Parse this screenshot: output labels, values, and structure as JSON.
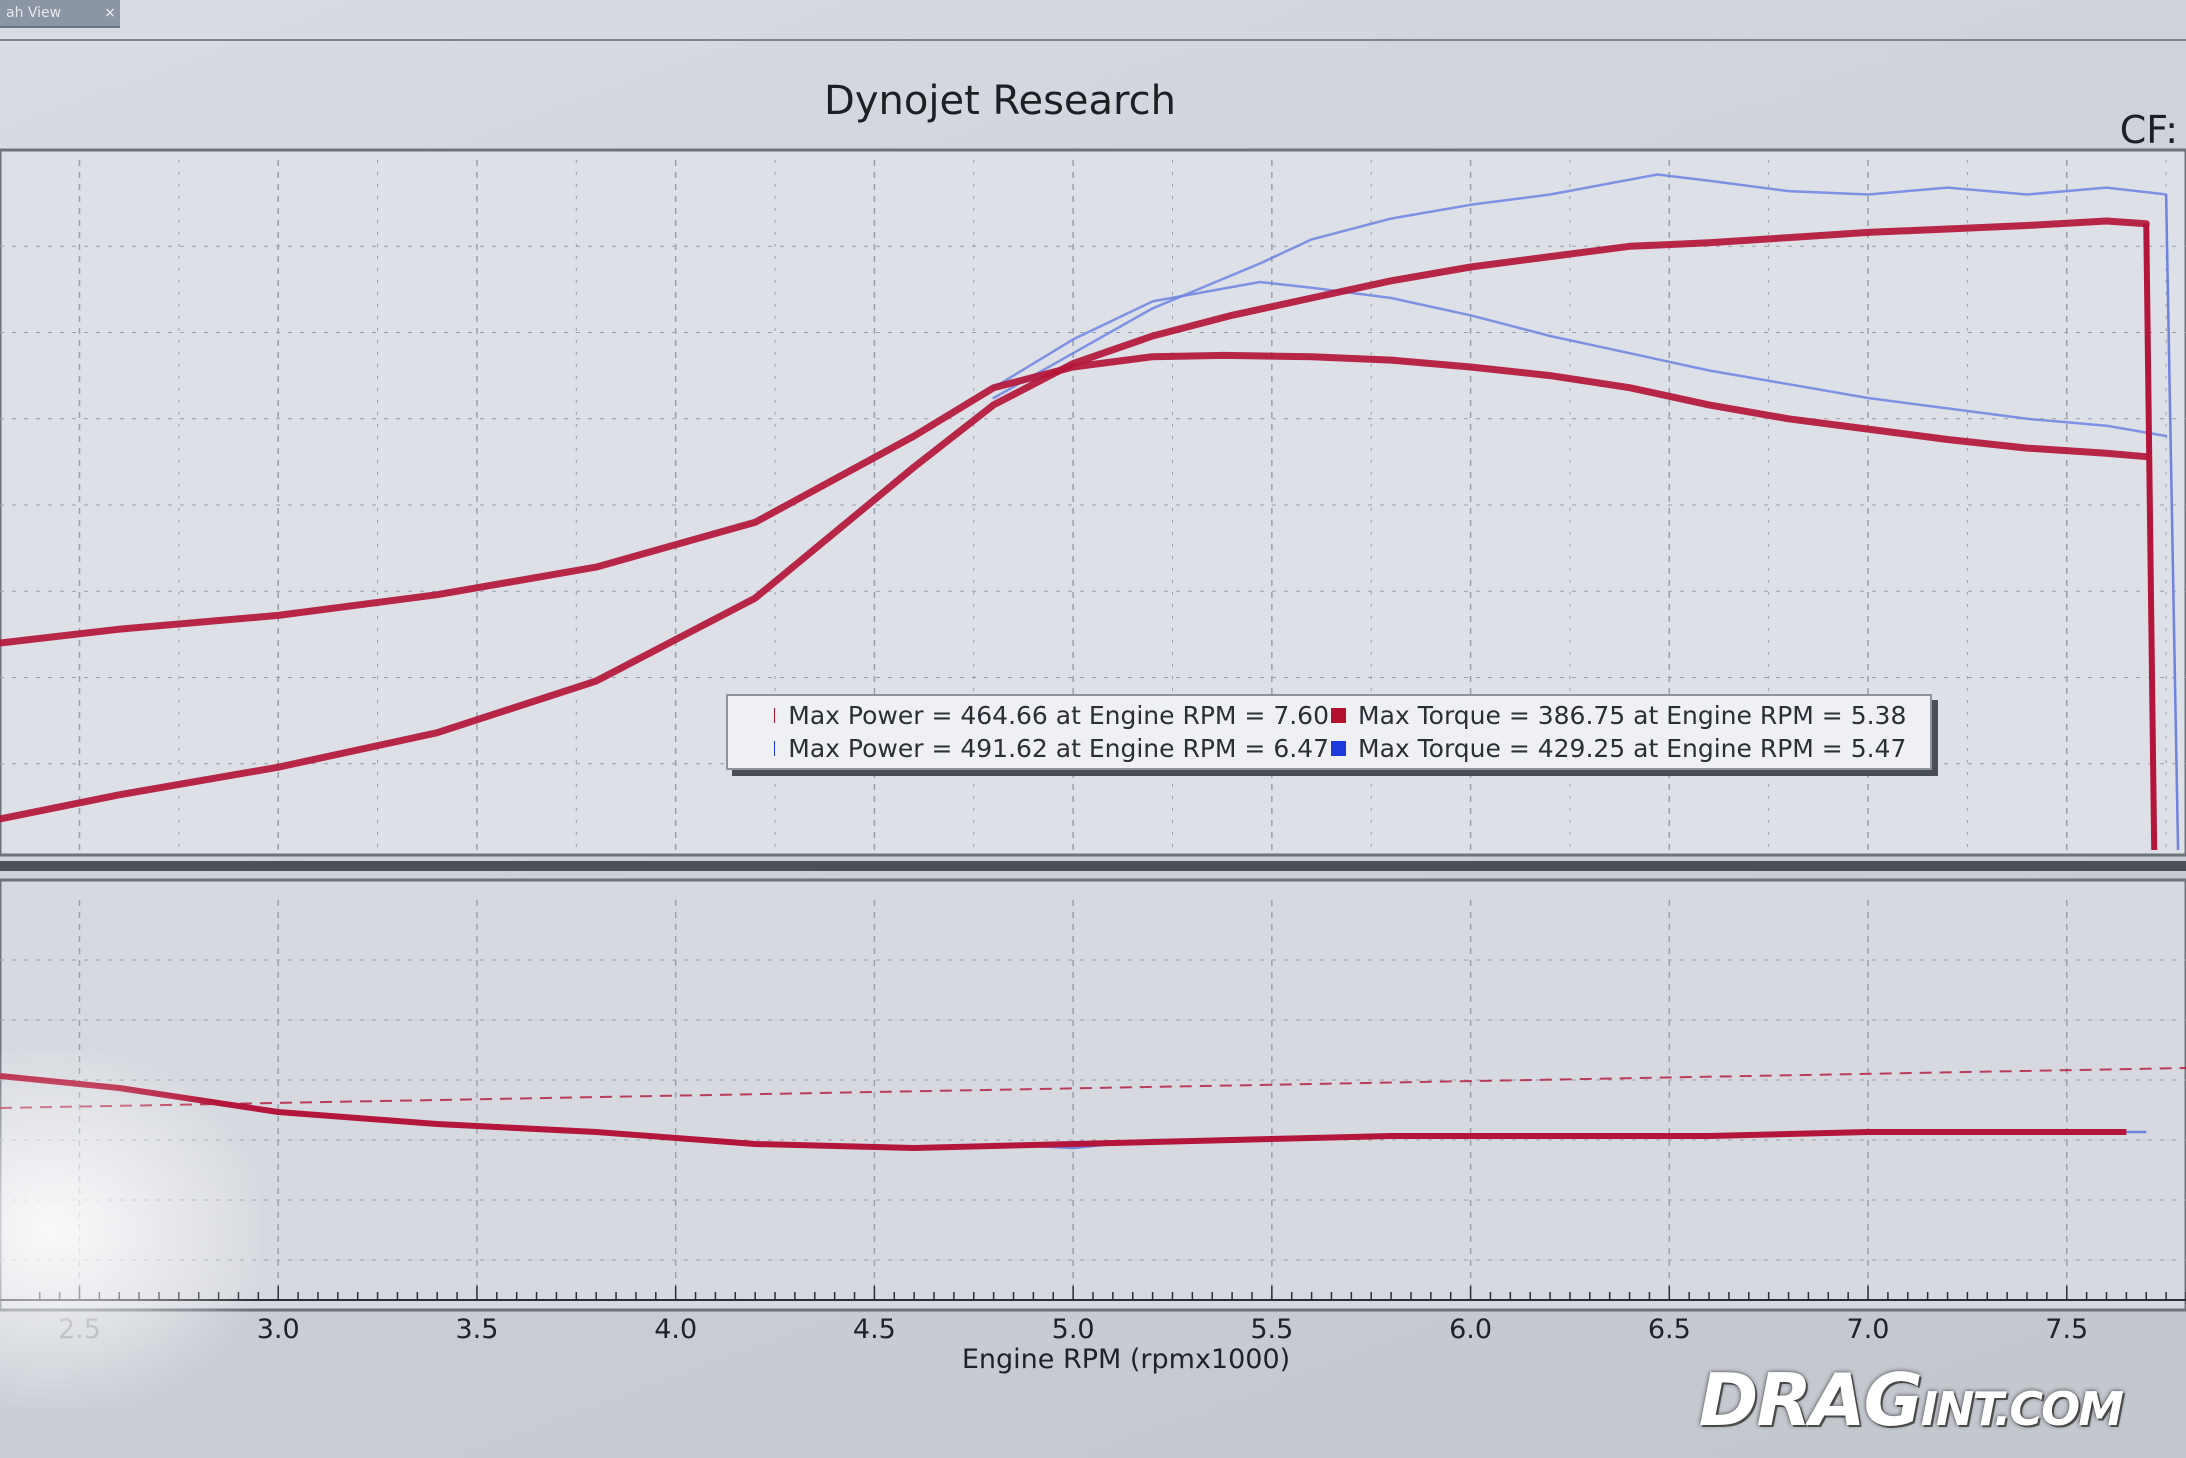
{
  "tab": {
    "label": "ah View",
    "close": "×"
  },
  "title": "Dynojet Research",
  "cf_label": "CF:",
  "colors": {
    "run1": "#b3122f",
    "run2": "#1e3adb",
    "run1_line": "#b3163a",
    "run2_line": "#6f82e0",
    "grid": "#9aa0aa"
  },
  "legend": {
    "rows": [
      {
        "power": "Max Power = 464.66 at Engine RPM = 7.60",
        "torque": "Max Torque = 386.75 at Engine RPM = 5.38",
        "color": "#b3122f"
      },
      {
        "power": "Max Power = 491.62 at Engine RPM = 6.47",
        "torque": "Max Torque = 429.25 at Engine RPM = 5.47",
        "color": "#1e3adb"
      }
    ]
  },
  "chart_data": {
    "type": "line",
    "title": "Dynojet Research",
    "xlabel": "Engine RPM (rpmx1000)",
    "ylabel": "",
    "xlim": [
      2.3,
      7.8
    ],
    "x_ticks": [
      "2.5",
      "3.0",
      "3.5",
      "4.0",
      "4.5",
      "5.0",
      "5.5",
      "6.0",
      "6.5",
      "7.0",
      "7.5"
    ],
    "grid": true,
    "legend_position": "center",
    "upper_panel": {
      "ylim": [
        100,
        500
      ],
      "series": [
        {
          "run": 1,
          "kind": "power",
          "x": [
            2.3,
            2.6,
            3.0,
            3.4,
            3.8,
            4.2,
            4.6,
            4.8,
            5.0,
            5.2,
            5.4,
            5.6,
            5.8,
            6.0,
            6.2,
            6.4,
            6.6,
            6.8,
            7.0,
            7.2,
            7.4,
            7.6,
            7.7
          ],
          "y": [
            118,
            132,
            148,
            168,
            198,
            246,
            322,
            358,
            382,
            398,
            410,
            420,
            430,
            438,
            444,
            450,
            452,
            455,
            458,
            460,
            462,
            464.66,
            463
          ]
        },
        {
          "run": 1,
          "kind": "torque",
          "x": [
            2.3,
            2.6,
            3.0,
            3.4,
            3.8,
            4.2,
            4.6,
            4.8,
            5.0,
            5.2,
            5.38,
            5.6,
            5.8,
            6.0,
            6.2,
            6.4,
            6.6,
            6.8,
            7.0,
            7.2,
            7.4,
            7.6,
            7.7
          ],
          "y": [
            220,
            228,
            236,
            248,
            264,
            290,
            340,
            368,
            380,
            386,
            386.75,
            386,
            384,
            380,
            375,
            368,
            358,
            350,
            344,
            338,
            333,
            330,
            328
          ]
        },
        {
          "run": 2,
          "kind": "power",
          "x": [
            4.8,
            5.0,
            5.2,
            5.47,
            5.6,
            5.8,
            6.0,
            6.2,
            6.47,
            6.6,
            6.8,
            7.0,
            7.2,
            7.4,
            7.6,
            7.75
          ],
          "y": [
            362,
            388,
            414,
            440,
            454,
            466,
            474,
            480,
            491.62,
            488,
            482,
            480,
            484,
            480,
            484,
            480
          ]
        },
        {
          "run": 2,
          "kind": "torque",
          "x": [
            4.8,
            5.0,
            5.2,
            5.47,
            5.6,
            5.8,
            6.0,
            6.2,
            6.4,
            6.6,
            6.8,
            7.0,
            7.2,
            7.4,
            7.6,
            7.75
          ],
          "y": [
            368,
            396,
            418,
            429.25,
            426,
            420,
            410,
            398,
            388,
            378,
            370,
            362,
            356,
            350,
            346,
            340
          ]
        }
      ]
    },
    "lower_panel": {
      "ylim": [
        0,
        100
      ],
      "series": [
        {
          "run": 1,
          "x": [
            2.3,
            2.6,
            3.0,
            3.4,
            3.8,
            4.2,
            4.6,
            5.0,
            5.4,
            5.8,
            6.2,
            6.6,
            7.0,
            7.4,
            7.65
          ],
          "y": [
            56,
            53,
            47,
            44,
            42,
            39,
            38,
            39,
            40,
            41,
            41,
            41,
            42,
            42,
            42
          ]
        },
        {
          "run": 2,
          "x": [
            4.8,
            5.0,
            5.2,
            5.4,
            5.8,
            6.2,
            6.6,
            7.0,
            7.4,
            7.7
          ],
          "y": [
            39,
            38,
            40,
            40,
            41,
            41,
            41,
            42,
            42,
            42
          ]
        }
      ],
      "reference_line": {
        "style": "dashed",
        "y_start": 48,
        "y_end": 58
      }
    }
  },
  "logo": {
    "text_big": "DRAG",
    "text_small": "INT.COM"
  }
}
